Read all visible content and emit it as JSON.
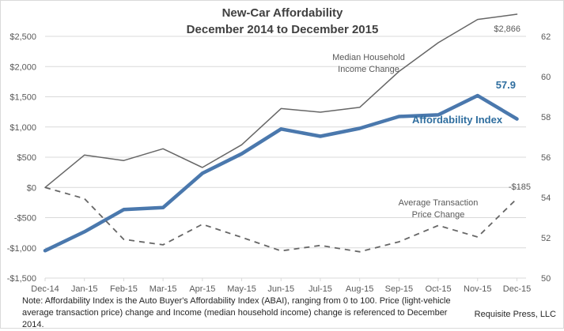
{
  "chart_data": {
    "type": "line",
    "title": "New-Car Affordability",
    "subtitle": "December 2014 to December 2015",
    "categories": [
      "Dec-14",
      "Jan-15",
      "Feb-15",
      "Mar-15",
      "Apr-15",
      "May-15",
      "Jun-15",
      "Jul-15",
      "Aug-15",
      "Sep-15",
      "Oct-15",
      "Nov-15",
      "Dec-15"
    ],
    "left_axis": {
      "ylim": [
        -1500,
        2500
      ],
      "ticks": [
        2500,
        2000,
        1500,
        1000,
        500,
        0,
        -500,
        -1000,
        -1500
      ],
      "tick_labels": [
        "$2,500",
        "$2,000",
        "$1,500",
        "$1,000",
        "$500",
        "$0",
        "-$500",
        "-$1,000",
        "-$1,500"
      ]
    },
    "right_axis": {
      "ylim": [
        50,
        62
      ],
      "ticks": [
        62,
        60,
        58,
        56,
        54,
        52,
        50
      ],
      "tick_labels": [
        "62",
        "60",
        "58",
        "56",
        "54",
        "52",
        "50"
      ]
    },
    "grid": true,
    "series": [
      {
        "name": "Median Household Income Change",
        "axis": "left",
        "style": "solid-thin",
        "color": "#666666",
        "values": [
          0,
          535,
          445,
          640,
          330,
          705,
          1305,
          1245,
          1325,
          1920,
          2395,
          2780,
          2866
        ],
        "end_label": "$2,866",
        "annotation": [
          "Median Household",
          "Income Change"
        ]
      },
      {
        "name": "Affordability Index",
        "axis": "right",
        "style": "solid-thick",
        "color": "#4a78ad",
        "values": [
          51.36,
          52.3,
          53.4,
          53.5,
          55.2,
          56.17,
          57.4,
          57.04,
          57.43,
          58.02,
          58.1,
          59.06,
          57.9
        ],
        "end_label": "57.9",
        "annotation": [
          "Affordability Index"
        ]
      },
      {
        "name": "Average Transaction Price Change",
        "axis": "left",
        "style": "dashed",
        "color": "#666666",
        "values": [
          0,
          -185,
          -860,
          -950,
          -610,
          -825,
          -1050,
          -960,
          -1065,
          -900,
          -630,
          -820,
          -185
        ],
        "end_label": "-$185",
        "annotation": [
          "Average Transaction",
          "Price Change"
        ]
      }
    ]
  },
  "note": "Note: Affordability Index is the Auto Buyer's Affordability Index (ABAI), ranging from 0 to 100. Price (light-vehicle average transaction price) change and Income (median household income) change is referenced to December 2014.",
  "credit": "Requisite Press, LLC"
}
